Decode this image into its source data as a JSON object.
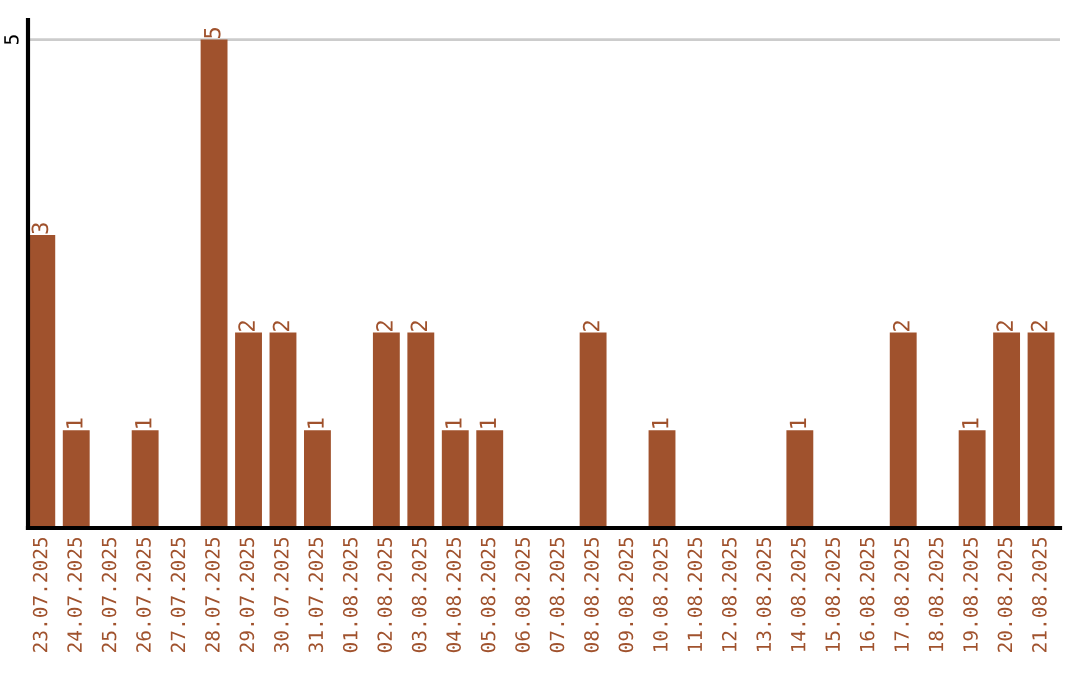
{
  "chart_data": {
    "type": "bar",
    "categories": [
      "23.07.2025",
      "24.07.2025",
      "25.07.2025",
      "26.07.2025",
      "27.07.2025",
      "28.07.2025",
      "29.07.2025",
      "30.07.2025",
      "31.07.2025",
      "01.08.2025",
      "02.08.2025",
      "03.08.2025",
      "04.08.2025",
      "05.08.2025",
      "06.08.2025",
      "07.08.2025",
      "08.08.2025",
      "09.08.2025",
      "10.08.2025",
      "11.08.2025",
      "12.08.2025",
      "13.08.2025",
      "14.08.2025",
      "15.08.2025",
      "16.08.2025",
      "17.08.2025",
      "18.08.2025",
      "19.08.2025",
      "20.08.2025",
      "21.08.2025"
    ],
    "values": [
      3,
      1,
      0,
      1,
      0,
      5,
      2,
      2,
      1,
      0,
      2,
      2,
      1,
      1,
      0,
      0,
      2,
      0,
      1,
      0,
      0,
      0,
      1,
      0,
      0,
      2,
      0,
      1,
      2,
      2
    ],
    "value_labels": [
      "3",
      "1",
      null,
      "1",
      null,
      "5",
      "2",
      "2",
      "1",
      null,
      "2",
      "2",
      "1",
      "1",
      null,
      null,
      "2",
      null,
      "1",
      null,
      null,
      null,
      "1",
      null,
      null,
      "2",
      null,
      "1",
      "2",
      "2"
    ],
    "color": "#a0522d",
    "ylim": [
      0,
      5.2
    ],
    "yticks": [
      5
    ],
    "grid": "y"
  }
}
